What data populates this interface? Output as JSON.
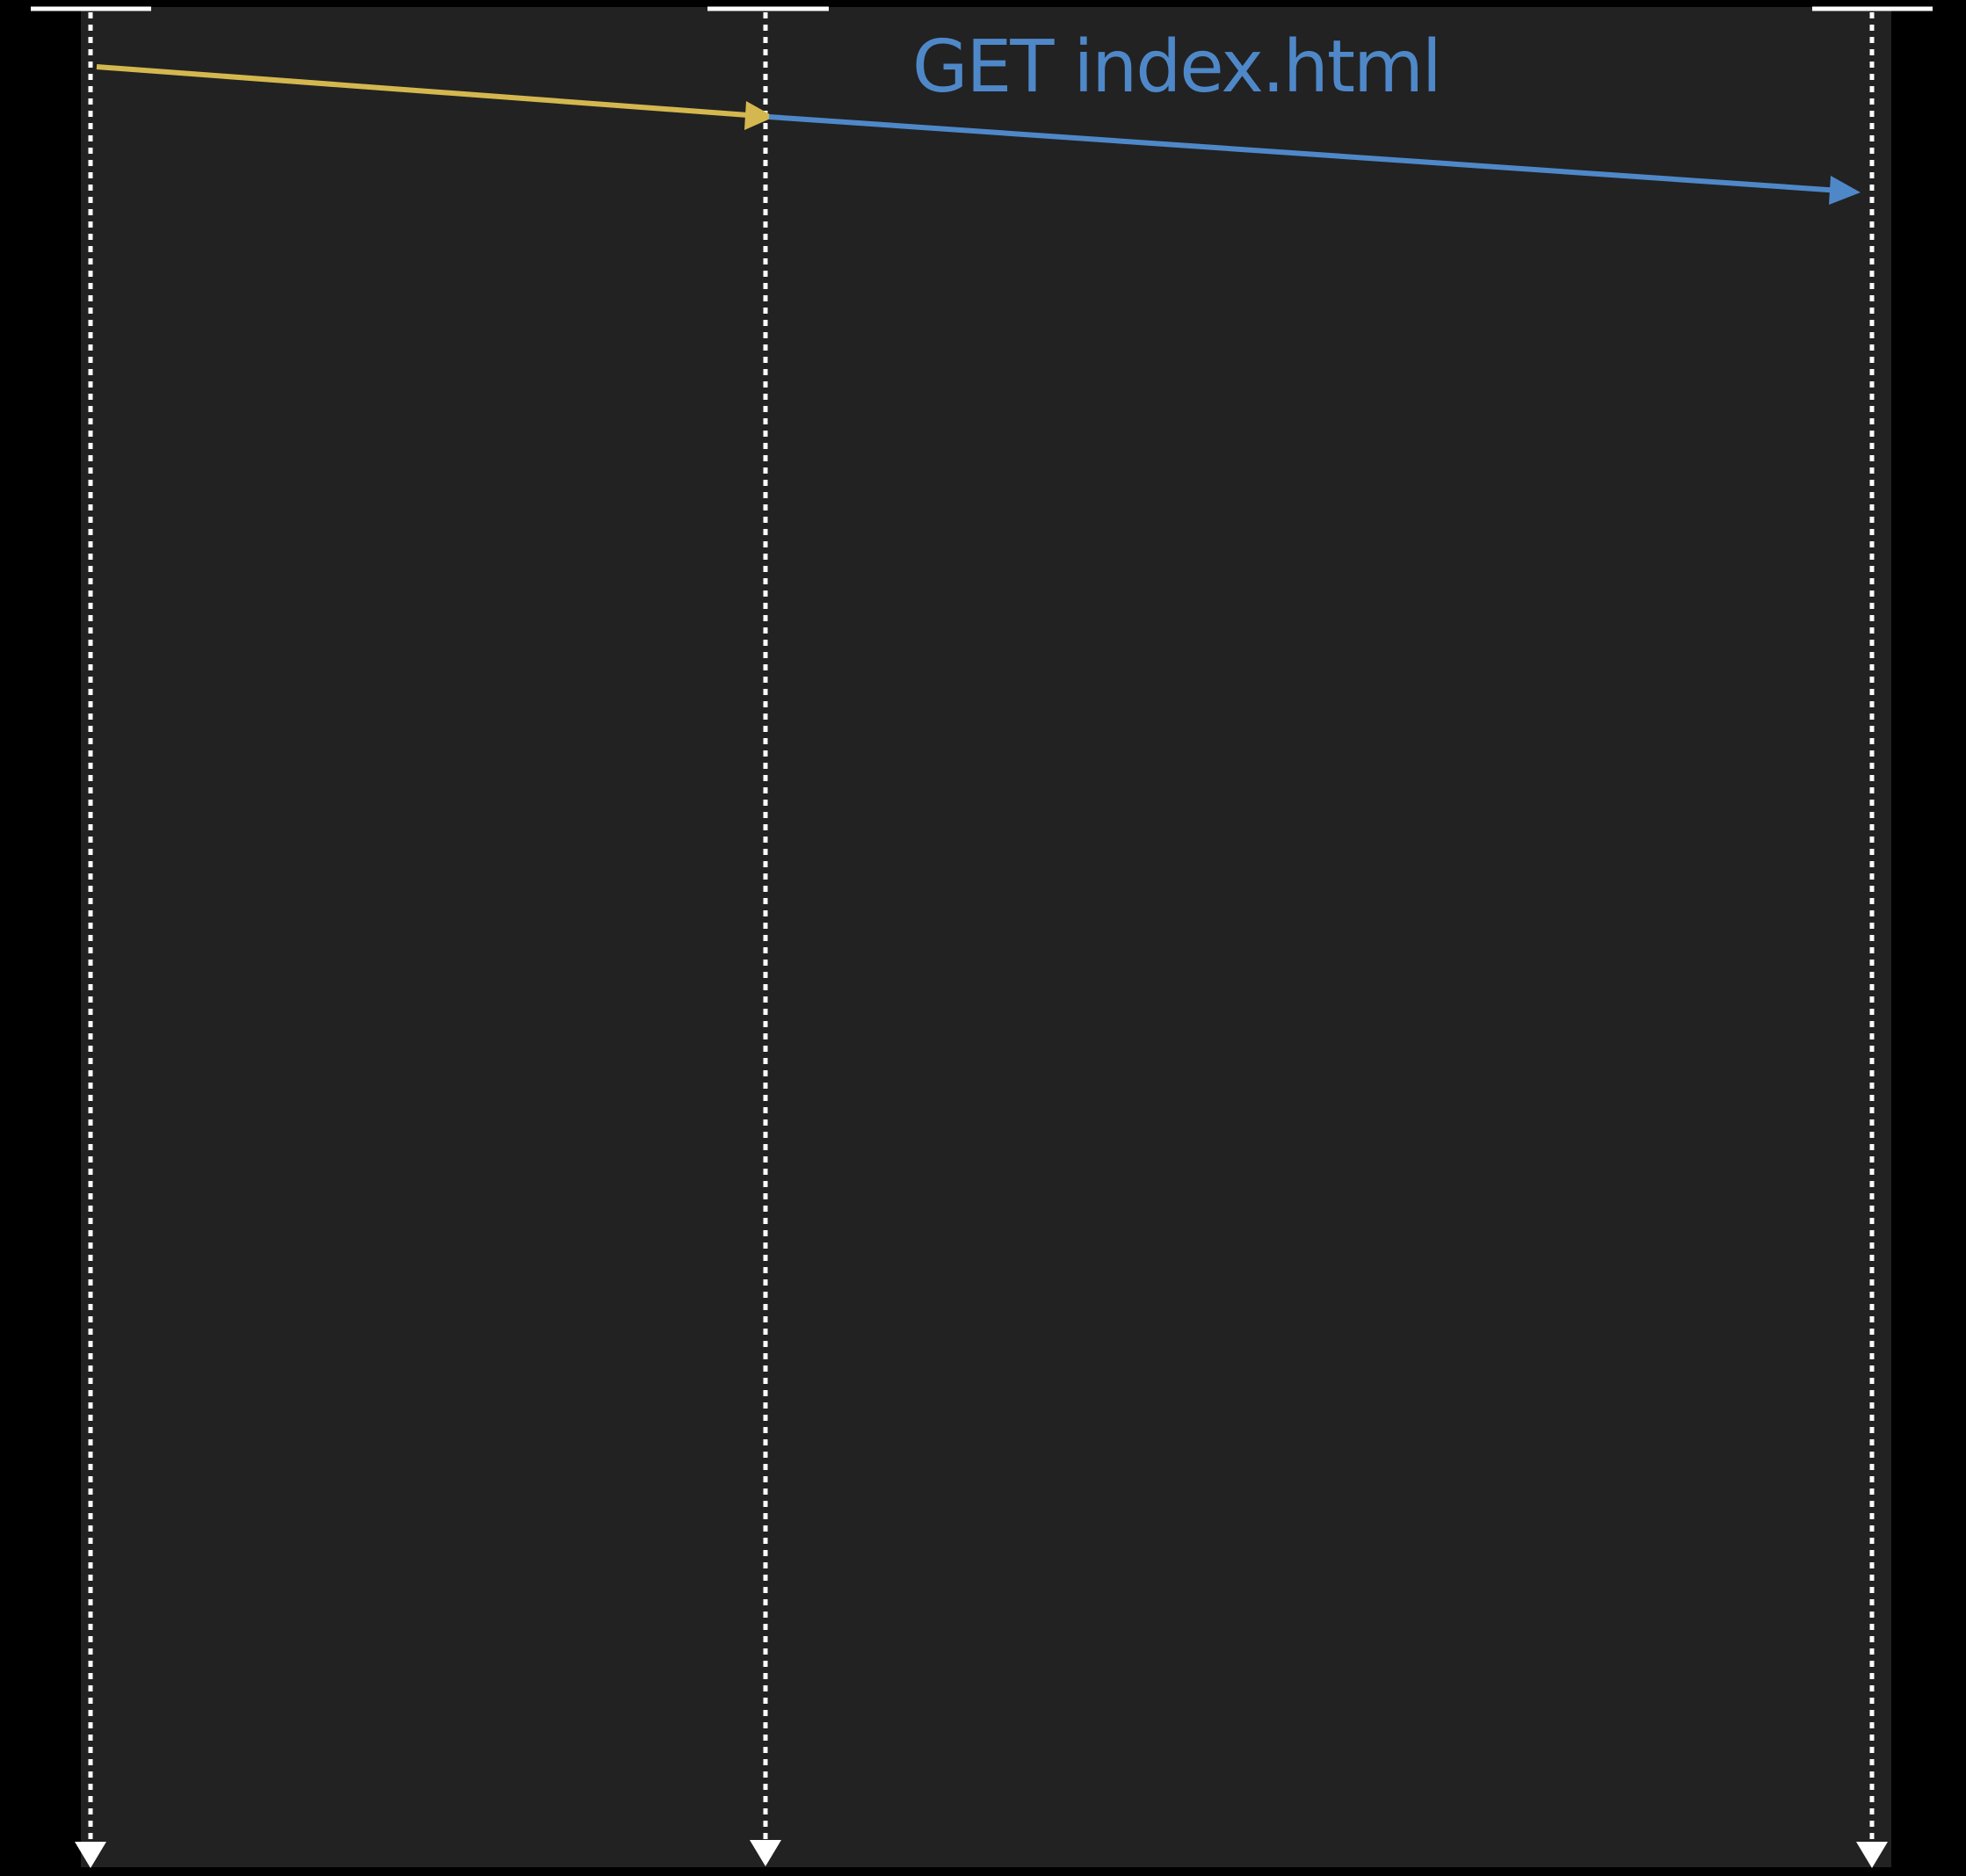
{
  "diagram": {
    "colors": {
      "page_background": "#000000",
      "panel_background": "#222222",
      "lifeline": "#ffffff",
      "request_arrow": "#d4b84f",
      "forwarded_arrow": "#4f88c9",
      "label": "#4f88c9"
    },
    "lifelines": [
      {
        "id": "lifeline-1",
        "label": ""
      },
      {
        "id": "lifeline-2",
        "label": ""
      },
      {
        "id": "lifeline-3",
        "label": ""
      }
    ],
    "messages": [
      {
        "id": "message-1",
        "from": "lifeline-1",
        "to": "lifeline-2",
        "label": "",
        "color": "#d4b84f"
      },
      {
        "id": "message-2",
        "from": "lifeline-2",
        "to": "lifeline-3",
        "label": "GET index.html",
        "color": "#4f88c9"
      }
    ]
  }
}
